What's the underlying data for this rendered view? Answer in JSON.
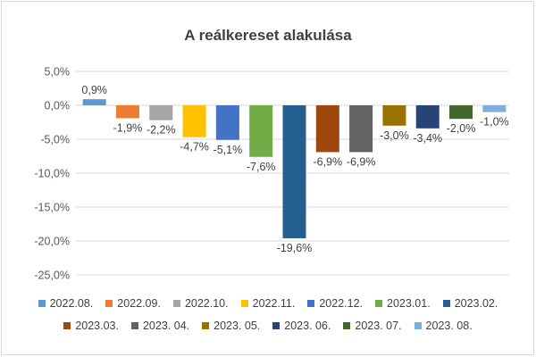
{
  "chart_data": {
    "type": "bar",
    "title": "A reálkereset alakulása",
    "xlabel": "",
    "ylabel": "",
    "ylim": [
      -25,
      5
    ],
    "y_ticks": [
      5,
      0,
      -5,
      -10,
      -15,
      -20,
      -25
    ],
    "y_tick_labels": [
      "5,0%",
      "0,0%",
      "-5,0%",
      "-10,0%",
      "-15,0%",
      "-20,0%",
      "-25,0%"
    ],
    "grid": true,
    "legend_position": "bottom",
    "series": [
      {
        "name": "2022.08.",
        "value": 0.9,
        "label": "0,9%",
        "color": "#5B9BD5"
      },
      {
        "name": "2022.09.",
        "value": -1.9,
        "label": "-1,9%",
        "color": "#ED7D31"
      },
      {
        "name": "2022.10.",
        "value": -2.2,
        "label": "-2,2%",
        "color": "#A5A5A5"
      },
      {
        "name": "2022.11.",
        "value": -4.7,
        "label": "-4,7%",
        "color": "#FFC000"
      },
      {
        "name": "2022.12.",
        "value": -5.1,
        "label": "-5,1%",
        "color": "#4472C4"
      },
      {
        "name": "2023.01.",
        "value": -7.6,
        "label": "-7,6%",
        "color": "#70AD47"
      },
      {
        "name": "2023.02.",
        "value": -19.6,
        "label": "-19,6%",
        "color": "#255E91"
      },
      {
        "name": "2023.03.",
        "value": -6.9,
        "label": "-6,9%",
        "color": "#9E480E"
      },
      {
        "name": "2023. 04.",
        "value": -6.9,
        "label": "-6,9%",
        "color": "#636363"
      },
      {
        "name": "2023. 05.",
        "value": -3.0,
        "label": "-3,0%",
        "color": "#997300"
      },
      {
        "name": "2023. 06.",
        "value": -3.4,
        "label": "-3,4%",
        "color": "#264478"
      },
      {
        "name": "2023. 07.",
        "value": -2.0,
        "label": "-2,0%",
        "color": "#43682B"
      },
      {
        "name": "2023. 08.",
        "value": -1.0,
        "label": "-1,0%",
        "color": "#7CAFDD"
      }
    ]
  }
}
